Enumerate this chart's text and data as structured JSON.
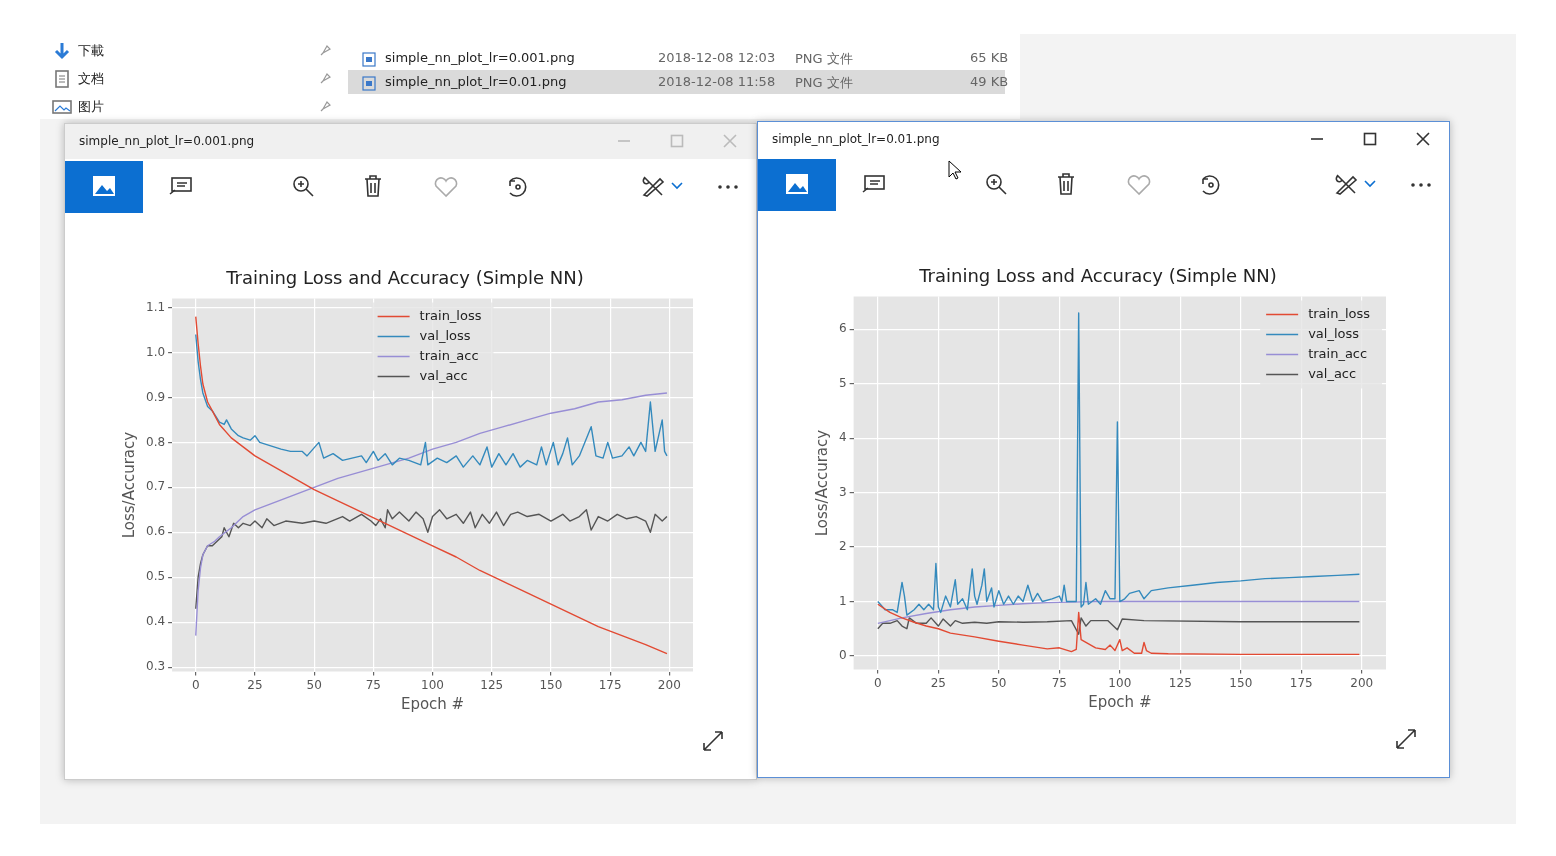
{
  "chart_data": [
    {
      "type": "other",
      "annotations": [
        "下載",
        "文档",
        "图片",
        "simple_nn_plot_lr=0.001.png",
        "2018-12-08 12:03",
        "PNG 文件",
        "65 KB",
        "simple_nn_plot_lr=0.01.png",
        "2018-12-08 11:58",
        "PNG 文件",
        "49 KB"
      ]
    },
    {
      "type": "line",
      "title": "Training Loss and Accuracy (Simple NN)",
      "xlabel": "Epoch #",
      "ylabel": "Loss/Accuracy",
      "annotations": [
        "simple_nn_plot_lr=0.001.png"
      ],
      "xlim": [
        -10,
        210
      ],
      "ylim": [
        0.29,
        1.12
      ],
      "xticks": [
        0,
        25,
        50,
        75,
        100,
        125,
        150,
        175,
        200
      ],
      "yticks": [
        0.3,
        0.4,
        0.5,
        0.6,
        0.7,
        0.8,
        0.9,
        {
          "value": 1.0,
          "label": "1.0"
        },
        1.1
      ],
      "grid": true,
      "legend": "top",
      "series": [
        {
          "name": "train_loss",
          "color": "#e24a33",
          "x": [
            0,
            1,
            2,
            3,
            5,
            7,
            10,
            15,
            20,
            25,
            30,
            40,
            50,
            60,
            70,
            80,
            90,
            100,
            110,
            120,
            130,
            140,
            150,
            160,
            170,
            180,
            190,
            199
          ],
          "values": [
            1.08,
            1.02,
            0.97,
            0.93,
            0.89,
            0.87,
            0.84,
            0.81,
            0.79,
            0.77,
            0.755,
            0.725,
            0.695,
            0.67,
            0.645,
            0.62,
            0.595,
            0.57,
            0.545,
            0.515,
            0.49,
            0.465,
            0.44,
            0.415,
            0.39,
            0.37,
            0.35,
            0.33
          ]
        },
        {
          "name": "val_loss",
          "color": "#348abd",
          "x": [
            0,
            1,
            2,
            3,
            5,
            7,
            10,
            12,
            13,
            15,
            18,
            20,
            23,
            25,
            27,
            30,
            33,
            36,
            40,
            45,
            47,
            52,
            54,
            58,
            62,
            66,
            70,
            72,
            75,
            77,
            80,
            83,
            86,
            90,
            95,
            97,
            98,
            102,
            106,
            110,
            113,
            117,
            120,
            123,
            125,
            128,
            131,
            134,
            137,
            140,
            144,
            146,
            148,
            151,
            153,
            155,
            157,
            159,
            162,
            167,
            169,
            172,
            174,
            176,
            180,
            183,
            185,
            188,
            190,
            192,
            194,
            197,
            198,
            199
          ],
          "values": [
            1.04,
            0.98,
            0.94,
            0.91,
            0.88,
            0.87,
            0.845,
            0.84,
            0.85,
            0.83,
            0.815,
            0.81,
            0.805,
            0.815,
            0.8,
            0.795,
            0.79,
            0.785,
            0.78,
            0.78,
            0.77,
            0.8,
            0.765,
            0.775,
            0.76,
            0.765,
            0.77,
            0.755,
            0.78,
            0.76,
            0.775,
            0.75,
            0.765,
            0.76,
            0.75,
            0.8,
            0.75,
            0.765,
            0.755,
            0.77,
            0.745,
            0.77,
            0.75,
            0.79,
            0.745,
            0.775,
            0.75,
            0.775,
            0.745,
            0.76,
            0.75,
            0.79,
            0.75,
            0.8,
            0.75,
            0.775,
            0.81,
            0.75,
            0.77,
            0.835,
            0.77,
            0.765,
            0.8,
            0.765,
            0.77,
            0.79,
            0.77,
            0.8,
            0.78,
            0.89,
            0.78,
            0.85,
            0.78,
            0.77
          ]
        },
        {
          "name": "train_acc",
          "color": "#988ed5",
          "x": [
            0,
            1,
            2,
            3,
            5,
            8,
            10,
            15,
            20,
            25,
            30,
            40,
            50,
            60,
            70,
            80,
            90,
            100,
            110,
            120,
            130,
            140,
            150,
            160,
            170,
            180,
            190,
            199
          ],
          "values": [
            0.37,
            0.47,
            0.52,
            0.55,
            0.57,
            0.58,
            0.59,
            0.61,
            0.635,
            0.65,
            0.66,
            0.68,
            0.7,
            0.72,
            0.735,
            0.75,
            0.765,
            0.785,
            0.8,
            0.82,
            0.835,
            0.85,
            0.865,
            0.875,
            0.89,
            0.895,
            0.905,
            0.91
          ]
        },
        {
          "name": "val_acc",
          "color": "#555555",
          "x": [
            0,
            1,
            2,
            3,
            5,
            7,
            9,
            11,
            12,
            14,
            16,
            18,
            20,
            23,
            25,
            28,
            30,
            33,
            38,
            45,
            50,
            55,
            62,
            65,
            70,
            74,
            76,
            78,
            80,
            81,
            83,
            86,
            90,
            93,
            96,
            98,
            100,
            103,
            106,
            110,
            113,
            116,
            118,
            121,
            124,
            127,
            130,
            133,
            136,
            140,
            145,
            150,
            155,
            158,
            162,
            165,
            167,
            170,
            174,
            178,
            182,
            186,
            190,
            192,
            194,
            197,
            199
          ],
          "values": [
            0.43,
            0.5,
            0.53,
            0.55,
            0.57,
            0.57,
            0.58,
            0.59,
            0.61,
            0.59,
            0.62,
            0.61,
            0.62,
            0.615,
            0.625,
            0.61,
            0.63,
            0.615,
            0.625,
            0.62,
            0.625,
            0.62,
            0.635,
            0.625,
            0.64,
            0.625,
            0.615,
            0.63,
            0.61,
            0.65,
            0.63,
            0.645,
            0.625,
            0.645,
            0.63,
            0.6,
            0.635,
            0.65,
            0.63,
            0.64,
            0.62,
            0.645,
            0.61,
            0.64,
            0.62,
            0.645,
            0.615,
            0.64,
            0.645,
            0.635,
            0.64,
            0.625,
            0.64,
            0.625,
            0.635,
            0.65,
            0.605,
            0.635,
            0.625,
            0.64,
            0.63,
            0.635,
            0.625,
            0.6,
            0.64,
            0.625,
            0.635
          ]
        }
      ]
    },
    {
      "type": "line",
      "title": "Training Loss and Accuracy (Simple NN)",
      "xlabel": "Epoch #",
      "ylabel": "Loss/Accuracy",
      "annotations": [
        "simple_nn_plot_lr=0.01.png"
      ],
      "xlim": [
        -10,
        210
      ],
      "ylim": [
        -0.25,
        6.6
      ],
      "xticks": [
        0,
        25,
        50,
        75,
        100,
        125,
        150,
        175,
        200
      ],
      "yticks": [
        0,
        1,
        2,
        3,
        4,
        5,
        6
      ],
      "grid": true,
      "legend": "top right",
      "series": [
        {
          "name": "train_loss",
          "color": "#e24a33",
          "x": [
            0,
            5,
            10,
            15,
            20,
            25,
            30,
            40,
            50,
            60,
            70,
            75,
            80,
            82,
            83,
            84,
            86,
            90,
            94,
            96,
            98,
            100,
            101,
            103,
            106,
            109,
            110,
            111,
            113,
            120,
            150,
            199
          ],
          "values": [
            0.95,
            0.8,
            0.7,
            0.62,
            0.55,
            0.5,
            0.42,
            0.35,
            0.27,
            0.2,
            0.13,
            0.15,
            0.08,
            0.12,
            0.8,
            0.3,
            0.25,
            0.15,
            0.12,
            0.2,
            0.1,
            0.3,
            0.1,
            0.15,
            0.05,
            0.05,
            0.25,
            0.1,
            0.05,
            0.04,
            0.03,
            0.03
          ]
        },
        {
          "name": "val_loss",
          "color": "#348abd",
          "x": [
            0,
            3,
            6,
            8,
            10,
            11,
            12,
            15,
            17,
            19,
            21,
            23,
            24,
            25,
            26,
            28,
            30,
            32,
            33,
            35,
            37,
            39,
            40,
            41,
            43,
            44,
            45,
            47,
            48,
            50,
            52,
            54,
            56,
            58,
            60,
            62,
            64,
            66,
            68,
            72,
            75,
            76,
            77,
            78,
            82,
            83,
            84,
            85,
            86,
            87,
            90,
            92,
            94,
            96,
            98,
            99,
            100,
            102,
            104,
            108,
            110,
            113,
            120,
            130,
            140,
            150,
            160,
            170,
            180,
            190,
            199
          ],
          "values": [
            1.0,
            0.85,
            0.85,
            0.8,
            1.35,
            1.1,
            0.75,
            0.85,
            0.95,
            0.85,
            0.95,
            0.85,
            1.7,
            0.9,
            0.8,
            1.1,
            0.9,
            1.4,
            0.95,
            1.05,
            0.85,
            1.6,
            1.1,
            0.95,
            1.3,
            1.6,
            1.0,
            1.25,
            0.9,
            1.2,
            0.95,
            1.1,
            0.95,
            1.1,
            1.0,
            1.3,
            1.0,
            1.15,
            1.0,
            1.05,
            1.1,
            1.0,
            1.3,
            1.0,
            1.0,
            6.3,
            0.9,
            0.95,
            1.35,
            0.95,
            1.05,
            0.95,
            1.2,
            1.05,
            1.05,
            4.3,
            1.0,
            1.05,
            1.15,
            1.2,
            1.05,
            1.2,
            1.25,
            1.3,
            1.35,
            1.38,
            1.42,
            1.44,
            1.46,
            1.48,
            1.5
          ]
        },
        {
          "name": "train_acc",
          "color": "#988ed5",
          "x": [
            0,
            10,
            20,
            30,
            40,
            50,
            60,
            70,
            80,
            90,
            100,
            120,
            199
          ],
          "values": [
            0.6,
            0.7,
            0.78,
            0.85,
            0.9,
            0.93,
            0.96,
            0.98,
            0.99,
            1.0,
            1.0,
            1.0,
            1.0
          ]
        },
        {
          "name": "val_acc",
          "color": "#555555",
          "x": [
            0,
            2,
            5,
            8,
            10,
            12,
            13,
            16,
            20,
            22,
            25,
            27,
            30,
            32,
            35,
            40,
            45,
            50,
            60,
            70,
            80,
            83,
            84,
            86,
            88,
            95,
            99,
            101,
            110,
            150,
            199
          ],
          "values": [
            0.5,
            0.6,
            0.6,
            0.65,
            0.55,
            0.5,
            0.7,
            0.6,
            0.6,
            0.7,
            0.55,
            0.68,
            0.55,
            0.65,
            0.6,
            0.62,
            0.6,
            0.63,
            0.62,
            0.63,
            0.65,
            0.4,
            0.7,
            0.55,
            0.65,
            0.65,
            0.48,
            0.68,
            0.65,
            0.63,
            0.63
          ]
        }
      ]
    }
  ]
}
